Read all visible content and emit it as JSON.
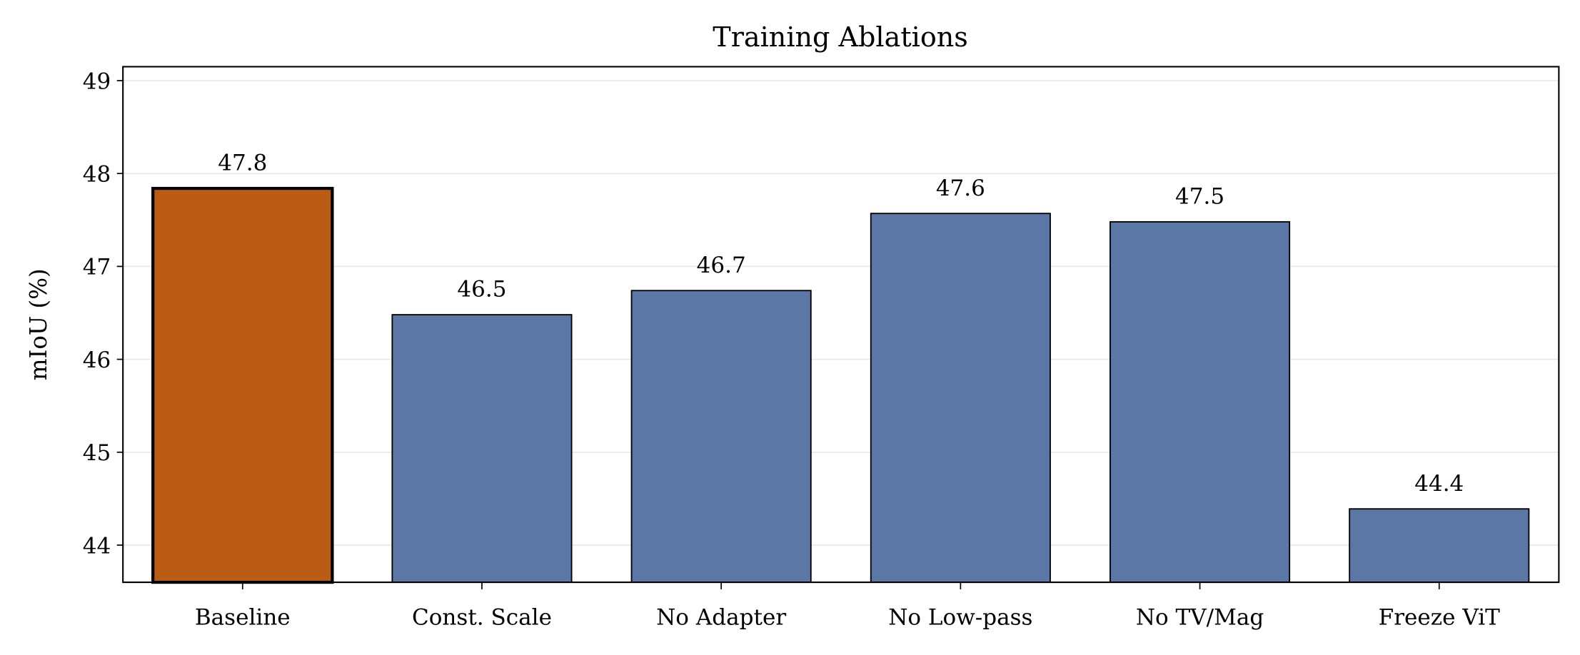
{
  "chart_data": {
    "type": "bar",
    "title": "Training Ablations",
    "xlabel": "",
    "ylabel": "mIoU (%)",
    "categories": [
      "Baseline",
      "Const. Scale",
      "No Adapter",
      "No Low-pass",
      "No TV/Mag",
      "Freeze ViT"
    ],
    "values": [
      47.84,
      46.48,
      46.74,
      47.57,
      47.48,
      44.39
    ],
    "data_labels": [
      "47.8",
      "46.5",
      "46.7",
      "47.6",
      "47.5",
      "44.4"
    ],
    "ylim": [
      43.6,
      49.15
    ],
    "yticks": [
      44,
      45,
      46,
      47,
      48,
      49
    ],
    "grid": "horizontal",
    "highlight_index": 0,
    "colors": {
      "highlight": "#BA5C13",
      "default": "#5B77A6",
      "edge": "#000000",
      "grid": "#E5E5E5"
    }
  }
}
